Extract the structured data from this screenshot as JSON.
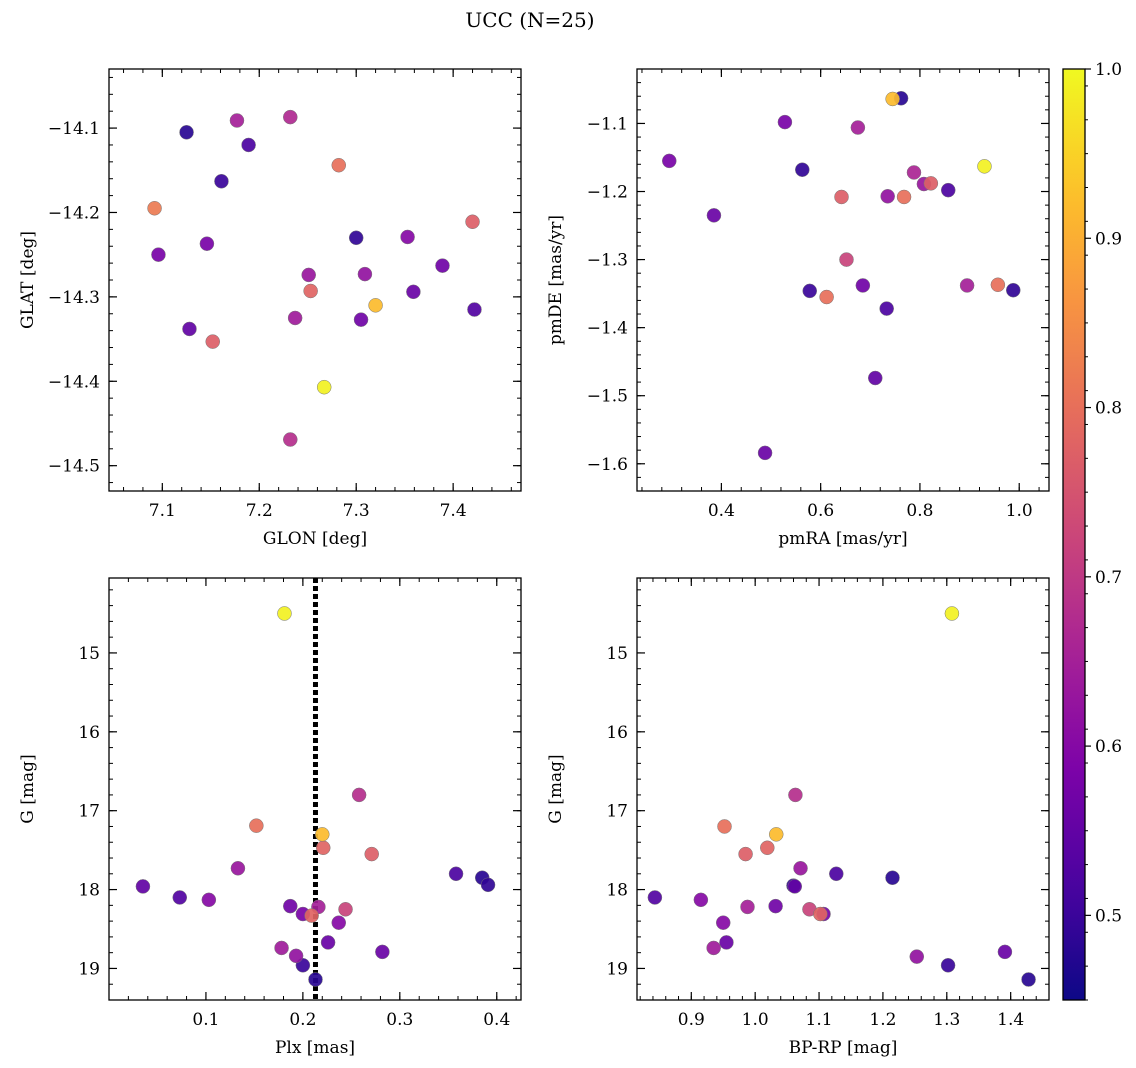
{
  "figure": {
    "title": "UCC (N=25)"
  },
  "colorbar": {
    "colormap": "plasma",
    "range": [
      0.45,
      1.0
    ],
    "ticks": [
      "0.5",
      "0.6",
      "0.7",
      "0.8",
      "0.9",
      "1.0"
    ]
  },
  "chart_data": [
    {
      "type": "scatter",
      "xlabel": "GLON [deg]",
      "ylabel": "GLAT [deg]",
      "xlim": [
        7.045,
        7.47
      ],
      "ylim": [
        -14.53,
        -14.03
      ],
      "y_inverted": false,
      "xticks": [
        "7.1",
        "7.2",
        "7.3",
        "7.4"
      ],
      "yticks": [
        "−14.1",
        "−14.2",
        "−14.3",
        "−14.4",
        "−14.5"
      ],
      "points": [
        {
          "x": 7.125,
          "y": -14.105,
          "c": 0.48
        },
        {
          "x": 7.177,
          "y": -14.091,
          "c": 0.65
        },
        {
          "x": 7.232,
          "y": -14.087,
          "c": 0.67
        },
        {
          "x": 7.189,
          "y": -14.12,
          "c": 0.52
        },
        {
          "x": 7.282,
          "y": -14.144,
          "c": 0.8
        },
        {
          "x": 7.161,
          "y": -14.163,
          "c": 0.5
        },
        {
          "x": 7.092,
          "y": -14.195,
          "c": 0.82
        },
        {
          "x": 7.42,
          "y": -14.211,
          "c": 0.77
        },
        {
          "x": 7.353,
          "y": -14.229,
          "c": 0.6
        },
        {
          "x": 7.3,
          "y": -14.23,
          "c": 0.49
        },
        {
          "x": 7.146,
          "y": -14.237,
          "c": 0.58
        },
        {
          "x": 7.096,
          "y": -14.25,
          "c": 0.58
        },
        {
          "x": 7.389,
          "y": -14.263,
          "c": 0.57
        },
        {
          "x": 7.251,
          "y": -14.274,
          "c": 0.63
        },
        {
          "x": 7.309,
          "y": -14.273,
          "c": 0.62
        },
        {
          "x": 7.253,
          "y": -14.293,
          "c": 0.78
        },
        {
          "x": 7.359,
          "y": -14.294,
          "c": 0.56
        },
        {
          "x": 7.32,
          "y": -14.31,
          "c": 0.92
        },
        {
          "x": 7.422,
          "y": -14.315,
          "c": 0.53
        },
        {
          "x": 7.237,
          "y": -14.325,
          "c": 0.64
        },
        {
          "x": 7.305,
          "y": -14.327,
          "c": 0.57
        },
        {
          "x": 7.128,
          "y": -14.338,
          "c": 0.55
        },
        {
          "x": 7.152,
          "y": -14.353,
          "c": 0.77
        },
        {
          "x": 7.267,
          "y": -14.407,
          "c": 0.99
        },
        {
          "x": 7.232,
          "y": -14.469,
          "c": 0.68
        }
      ]
    },
    {
      "type": "scatter",
      "xlabel": "pmRA [mas/yr]",
      "ylabel": "pmDE [mas/yr]",
      "xlim": [
        0.23,
        1.06
      ],
      "ylim": [
        -1.64,
        -1.02
      ],
      "y_inverted": false,
      "xticks": [
        "0.4",
        "0.6",
        "0.8",
        "1.0"
      ],
      "yticks": [
        "−1.1",
        "−1.2",
        "−1.3",
        "−1.4",
        "−1.5",
        "−1.6"
      ],
      "points": [
        {
          "x": 0.762,
          "y": -1.063,
          "c": 0.48
        },
        {
          "x": 0.745,
          "y": -1.064,
          "c": 0.92
        },
        {
          "x": 0.528,
          "y": -1.098,
          "c": 0.58
        },
        {
          "x": 0.675,
          "y": -1.106,
          "c": 0.65
        },
        {
          "x": 0.295,
          "y": -1.155,
          "c": 0.58
        },
        {
          "x": 0.93,
          "y": -1.163,
          "c": 0.99
        },
        {
          "x": 0.563,
          "y": -1.168,
          "c": 0.49
        },
        {
          "x": 0.788,
          "y": -1.172,
          "c": 0.66
        },
        {
          "x": 0.808,
          "y": -1.189,
          "c": 0.63
        },
        {
          "x": 0.822,
          "y": -1.188,
          "c": 0.77
        },
        {
          "x": 0.857,
          "y": -1.198,
          "c": 0.52
        },
        {
          "x": 0.642,
          "y": -1.208,
          "c": 0.77
        },
        {
          "x": 0.735,
          "y": -1.207,
          "c": 0.62
        },
        {
          "x": 0.768,
          "y": -1.208,
          "c": 0.8
        },
        {
          "x": 0.385,
          "y": -1.235,
          "c": 0.56
        },
        {
          "x": 0.652,
          "y": -1.3,
          "c": 0.72
        },
        {
          "x": 0.685,
          "y": -1.338,
          "c": 0.57
        },
        {
          "x": 0.895,
          "y": -1.338,
          "c": 0.65
        },
        {
          "x": 0.957,
          "y": -1.337,
          "c": 0.8
        },
        {
          "x": 0.988,
          "y": -1.345,
          "c": 0.49
        },
        {
          "x": 0.578,
          "y": -1.346,
          "c": 0.5
        },
        {
          "x": 0.612,
          "y": -1.355,
          "c": 0.8
        },
        {
          "x": 0.733,
          "y": -1.372,
          "c": 0.52
        },
        {
          "x": 0.71,
          "y": -1.474,
          "c": 0.55
        },
        {
          "x": 0.488,
          "y": -1.584,
          "c": 0.56
        }
      ]
    },
    {
      "type": "scatter",
      "xlabel": "Plx [mas]",
      "ylabel": "G [mag]",
      "xlim": [
        0.0,
        0.425
      ],
      "ylim": [
        14.05,
        19.4
      ],
      "y_inverted": true,
      "xticks": [
        "0.1",
        "0.2",
        "0.3",
        "0.4"
      ],
      "yticks": [
        "15",
        "16",
        "17",
        "18",
        "19"
      ],
      "vline": {
        "x": 0.213,
        "style": "dotted"
      },
      "points": [
        {
          "x": 0.181,
          "y": 14.5,
          "c": 0.99
        },
        {
          "x": 0.258,
          "y": 16.8,
          "c": 0.68
        },
        {
          "x": 0.152,
          "y": 17.19,
          "c": 0.8
        },
        {
          "x": 0.22,
          "y": 17.3,
          "c": 0.92
        },
        {
          "x": 0.221,
          "y": 17.47,
          "c": 0.78
        },
        {
          "x": 0.271,
          "y": 17.55,
          "c": 0.77
        },
        {
          "x": 0.133,
          "y": 17.73,
          "c": 0.63
        },
        {
          "x": 0.358,
          "y": 17.8,
          "c": 0.52
        },
        {
          "x": 0.385,
          "y": 17.85,
          "c": 0.48
        },
        {
          "x": 0.391,
          "y": 17.94,
          "c": 0.49
        },
        {
          "x": 0.035,
          "y": 17.96,
          "c": 0.55
        },
        {
          "x": 0.073,
          "y": 18.1,
          "c": 0.53
        },
        {
          "x": 0.103,
          "y": 18.13,
          "c": 0.6
        },
        {
          "x": 0.187,
          "y": 18.21,
          "c": 0.57
        },
        {
          "x": 0.216,
          "y": 18.22,
          "c": 0.65
        },
        {
          "x": 0.244,
          "y": 18.25,
          "c": 0.72
        },
        {
          "x": 0.2,
          "y": 18.31,
          "c": 0.58
        },
        {
          "x": 0.209,
          "y": 18.33,
          "c": 0.78
        },
        {
          "x": 0.237,
          "y": 18.42,
          "c": 0.6
        },
        {
          "x": 0.226,
          "y": 18.67,
          "c": 0.56
        },
        {
          "x": 0.178,
          "y": 18.74,
          "c": 0.64
        },
        {
          "x": 0.282,
          "y": 18.79,
          "c": 0.56
        },
        {
          "x": 0.193,
          "y": 18.84,
          "c": 0.62
        },
        {
          "x": 0.2,
          "y": 18.96,
          "c": 0.5
        },
        {
          "x": 0.213,
          "y": 19.14,
          "c": 0.48
        }
      ]
    },
    {
      "type": "scatter",
      "xlabel": "BP-RP [mag]",
      "ylabel": "G [mag]",
      "xlim": [
        0.815,
        1.46
      ],
      "ylim": [
        14.05,
        19.4
      ],
      "y_inverted": true,
      "xticks": [
        "0.9",
        "1.0",
        "1.1",
        "1.2",
        "1.3",
        "1.4"
      ],
      "yticks": [
        "15",
        "16",
        "17",
        "18",
        "19"
      ],
      "points": [
        {
          "x": 1.308,
          "y": 14.5,
          "c": 0.99
        },
        {
          "x": 1.063,
          "y": 16.8,
          "c": 0.68
        },
        {
          "x": 0.952,
          "y": 17.2,
          "c": 0.8
        },
        {
          "x": 1.033,
          "y": 17.3,
          "c": 0.92
        },
        {
          "x": 1.019,
          "y": 17.47,
          "c": 0.78
        },
        {
          "x": 0.985,
          "y": 17.55,
          "c": 0.77
        },
        {
          "x": 1.071,
          "y": 17.73,
          "c": 0.63
        },
        {
          "x": 1.127,
          "y": 17.8,
          "c": 0.52
        },
        {
          "x": 1.215,
          "y": 17.85,
          "c": 0.48
        },
        {
          "x": 1.06,
          "y": 17.95,
          "c": 0.49
        },
        {
          "x": 1.062,
          "y": 17.96,
          "c": 0.55
        },
        {
          "x": 0.843,
          "y": 18.1,
          "c": 0.53
        },
        {
          "x": 0.915,
          "y": 18.13,
          "c": 0.6
        },
        {
          "x": 0.988,
          "y": 18.22,
          "c": 0.65
        },
        {
          "x": 1.032,
          "y": 18.21,
          "c": 0.57
        },
        {
          "x": 1.085,
          "y": 18.25,
          "c": 0.72
        },
        {
          "x": 1.102,
          "y": 18.31,
          "c": 0.78
        },
        {
          "x": 1.107,
          "y": 18.31,
          "c": 0.58
        },
        {
          "x": 0.95,
          "y": 18.42,
          "c": 0.6
        },
        {
          "x": 0.955,
          "y": 18.67,
          "c": 0.56
        },
        {
          "x": 0.935,
          "y": 18.74,
          "c": 0.64
        },
        {
          "x": 1.391,
          "y": 18.79,
          "c": 0.56
        },
        {
          "x": 1.253,
          "y": 18.85,
          "c": 0.62
        },
        {
          "x": 1.302,
          "y": 18.96,
          "c": 0.5
        },
        {
          "x": 1.428,
          "y": 19.14,
          "c": 0.48
        }
      ]
    }
  ]
}
